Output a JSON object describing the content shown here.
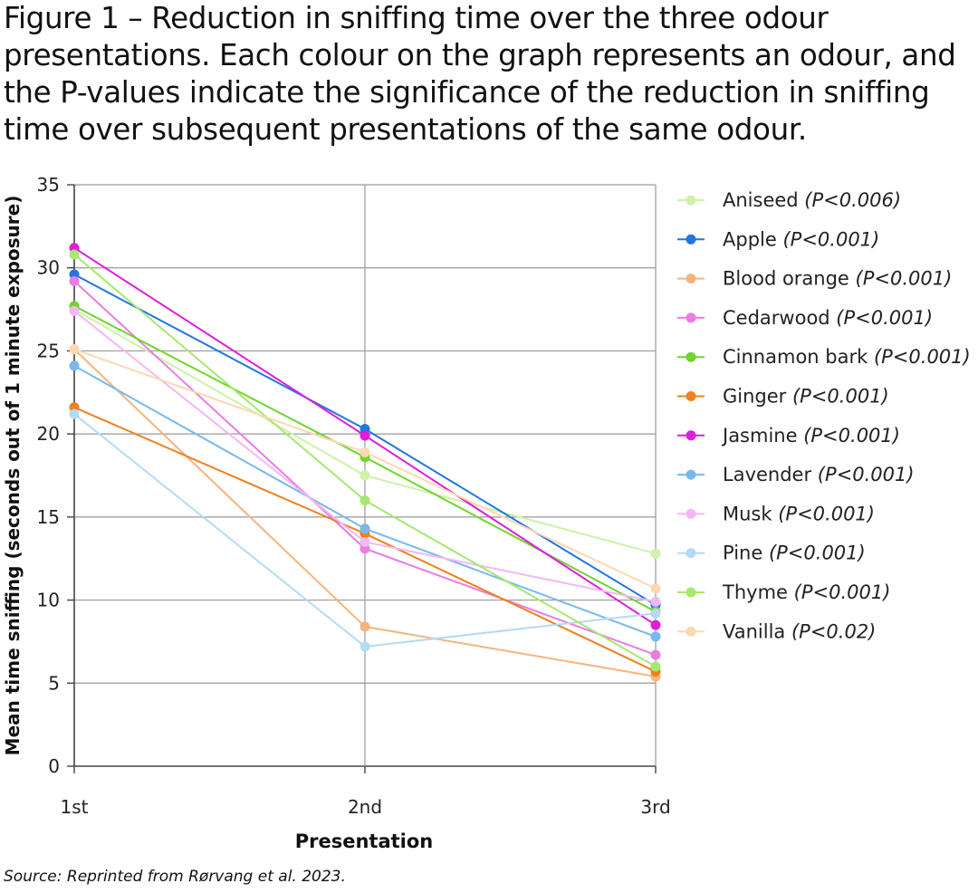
{
  "caption": "Figure 1 – Reduction in sniffing time over the three odour presentations. Each colour on the graph represents an odour, and the P-values indicate the significance of the reduction in sniffing time over subsequent presentations of the same odour.",
  "source": "Source: Reprinted from Rørvang et al. 2023.",
  "chart_data": {
    "type": "line",
    "xlabel": "Presentation",
    "ylabel": "Mean time sniffing (seconds out of 1 minute exposure)",
    "categories": [
      "1st",
      "2nd",
      "3rd"
    ],
    "ylim": [
      0,
      35
    ],
    "yticks": [
      0,
      5,
      10,
      15,
      20,
      25,
      30,
      35
    ],
    "grid": true,
    "legend_position": "right",
    "series": [
      {
        "name": "Aniseed",
        "p": "(P<0.006)",
        "color": "#cdf2a8",
        "values": [
          27.5,
          17.5,
          12.8
        ]
      },
      {
        "name": "Apple",
        "p": "(P<0.001)",
        "color": "#1f77e0",
        "values": [
          29.6,
          20.3,
          9.7
        ]
      },
      {
        "name": "Blood orange",
        "p": "(P<0.001)",
        "color": "#f5b47e",
        "values": [
          25.1,
          8.4,
          5.4
        ]
      },
      {
        "name": "Cedarwood",
        "p": "(P<0.001)",
        "color": "#e87de4",
        "values": [
          29.2,
          13.1,
          6.7
        ]
      },
      {
        "name": "Cinnamon bark",
        "p": "(P<0.001)",
        "color": "#6fd62b",
        "values": [
          27.7,
          18.6,
          9.3
        ]
      },
      {
        "name": "Ginger",
        "p": "(P<0.001)",
        "color": "#f0801e",
        "values": [
          21.6,
          14.0,
          5.7
        ]
      },
      {
        "name": "Jasmine",
        "p": "(P<0.001)",
        "color": "#e01ed8",
        "values": [
          31.2,
          19.9,
          8.5
        ]
      },
      {
        "name": "Lavender",
        "p": "(P<0.001)",
        "color": "#78b8ec",
        "values": [
          24.1,
          14.3,
          7.8
        ]
      },
      {
        "name": "Musk",
        "p": "(P<0.001)",
        "color": "#f4b8f2",
        "values": [
          27.4,
          13.5,
          9.9
        ]
      },
      {
        "name": "Pine",
        "p": "(P<0.001)",
        "color": "#b4daf4",
        "values": [
          21.2,
          7.2,
          9.2
        ]
      },
      {
        "name": "Thyme",
        "p": "(P<0.001)",
        "color": "#a6e870",
        "values": [
          30.8,
          16.0,
          6.0
        ]
      },
      {
        "name": "Vanilla",
        "p": "(P<0.02)",
        "color": "#fbd8b4",
        "values": [
          25.1,
          18.9,
          10.7
        ]
      }
    ]
  }
}
